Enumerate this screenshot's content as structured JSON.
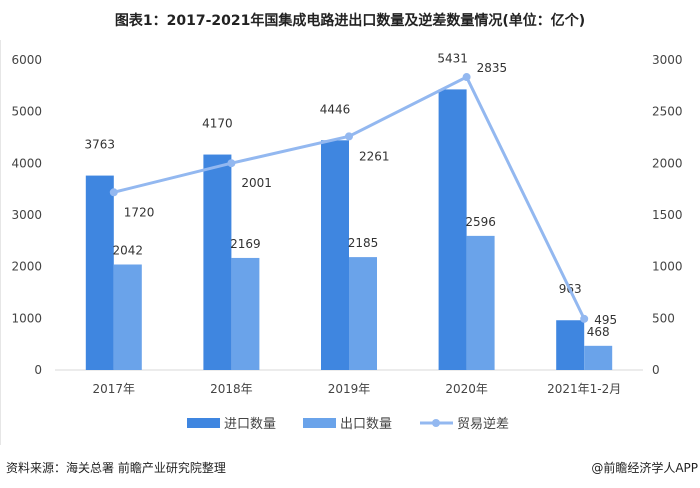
{
  "title": "图表1：2017-2021年国集成电路进出口数量及逆差数量情况(单位：亿个)",
  "source": "资料来源：海关总署 前瞻产业研究院整理",
  "brand": "@前瞻经济学人APP",
  "chart_data": {
    "type": "bar",
    "title": "图表1：2017-2021年国集成电路进出口数量及逆差数量情况(单位：亿个)",
    "categories": [
      "2017年",
      "2018年",
      "2019年",
      "2020年",
      "2021年1-2月"
    ],
    "series": [
      {
        "name": "进口数量",
        "type": "bar",
        "axis": "left",
        "color": "#3f86e0",
        "values": [
          3763,
          4170,
          4446,
          5431,
          963
        ]
      },
      {
        "name": "出口数量",
        "type": "bar",
        "axis": "left",
        "color": "#6aa3ea",
        "values": [
          2042,
          2169,
          2185,
          2596,
          468
        ]
      },
      {
        "name": "贸易逆差",
        "type": "line",
        "axis": "right",
        "color": "#93b8f0",
        "values": [
          1720,
          2001,
          2261,
          2835,
          495
        ]
      }
    ],
    "left_axis": {
      "range": [
        0,
        6000
      ],
      "ticks": [
        0,
        1000,
        2000,
        3000,
        4000,
        5000,
        6000
      ]
    },
    "right_axis": {
      "range": [
        0,
        3000
      ],
      "ticks": [
        0,
        500,
        1000,
        1500,
        2000,
        2500,
        3000
      ]
    },
    "grid": false,
    "legend": "bottom"
  }
}
